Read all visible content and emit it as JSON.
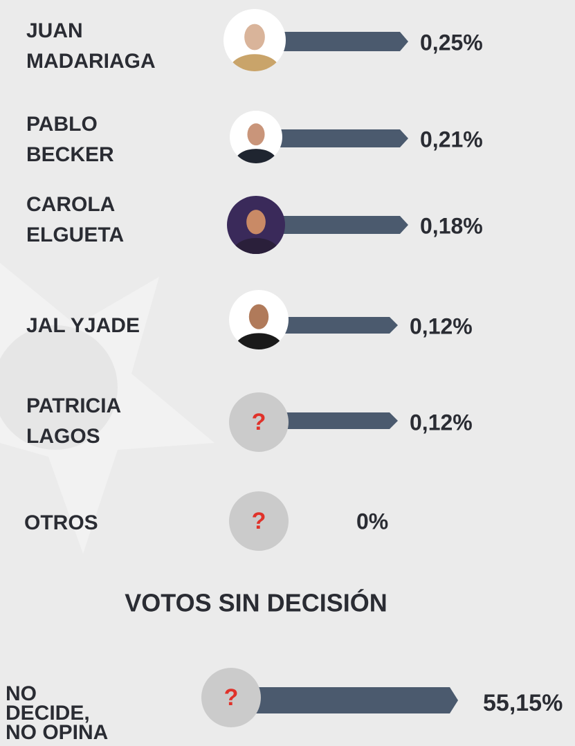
{
  "rows": [
    {
      "label_lines": [
        "JUAN",
        "MADARIAGA"
      ],
      "value": "0,25%"
    },
    {
      "label_lines": [
        "PABLO",
        "BECKER"
      ],
      "value": "0,21%"
    },
    {
      "label_lines": [
        "CAROLA",
        "ELGUETA"
      ],
      "value": "0,18%"
    },
    {
      "label_lines": [
        "JAL YJADE"
      ],
      "value": "0,12%"
    },
    {
      "label_lines": [
        "PATRICIA",
        "LAGOS"
      ],
      "value": "0,12%",
      "photo_mark": "?"
    },
    {
      "label_lines": [
        "OTROS"
      ],
      "value": "0%",
      "photo_mark": "?"
    }
  ],
  "section_title": "VOTOS SIN DECISIÓN",
  "undecided": {
    "label_lines": [
      "NO",
      "DECIDE,",
      "NO OPINA"
    ],
    "value": "55,15%",
    "photo_mark": "?"
  }
}
